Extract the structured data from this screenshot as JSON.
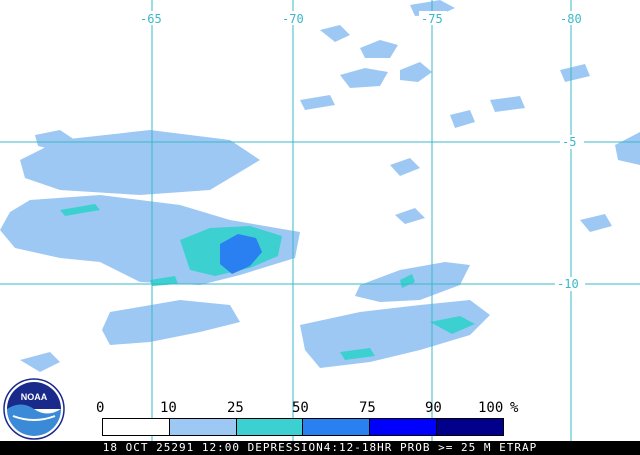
{
  "grid": {
    "lon_labels": [
      "-65",
      "-70",
      "-75",
      "-80"
    ],
    "lat_labels": [
      "-5",
      "-10"
    ],
    "line_color": "#3ab8c8"
  },
  "legend": {
    "labels": [
      "0",
      "10",
      "25",
      "50",
      "75",
      "90",
      "100"
    ],
    "unit": "%",
    "colors": [
      "#ffffff",
      "#9ec8f4",
      "#3cd0d0",
      "#2a80f0",
      "#0000ff",
      "#00008a"
    ]
  },
  "footer": {
    "text": "18 OCT 25291 12:00 DEPRESSION4:12-18HR PROB >= 25 M ETRAP"
  },
  "logo": {
    "text": "NOAA",
    "icon": "noaa-logo-icon"
  }
}
